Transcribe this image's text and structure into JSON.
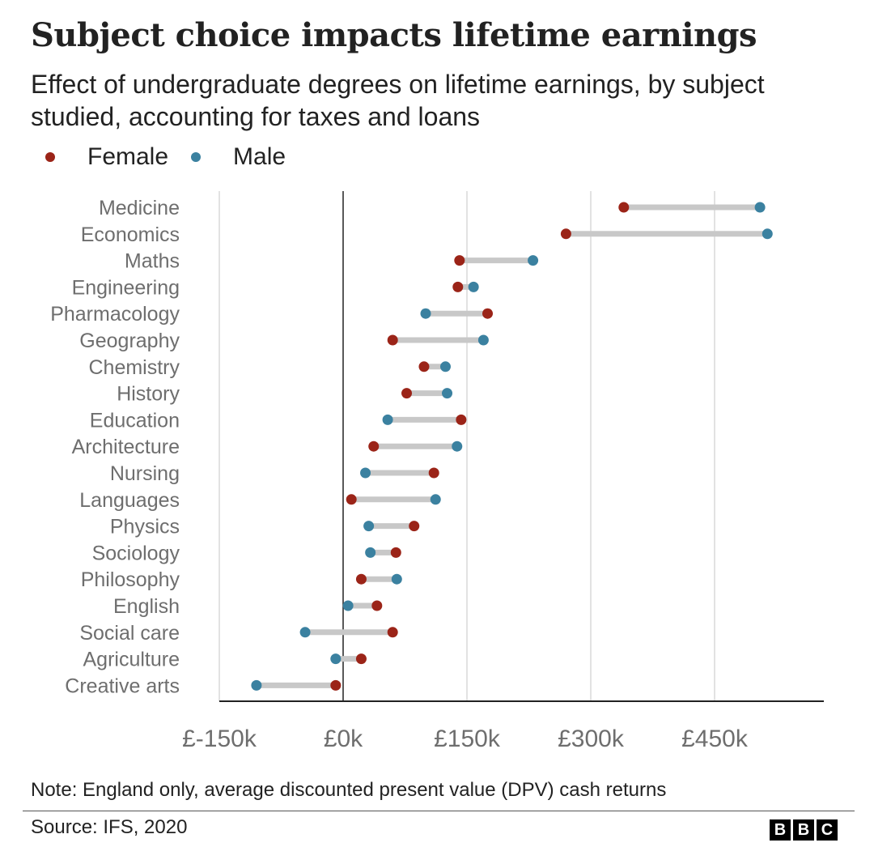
{
  "header": {
    "title": "Subject choice impacts lifetime earnings",
    "subtitle": "Effect of undergraduate degrees on lifetime earnings, by subject studied, accounting for taxes and loans"
  },
  "footer": {
    "note": "Note: England only, average discounted present value (DPV) cash returns",
    "source": "Source: IFS, 2020",
    "logo_letters": [
      "B",
      "B",
      "C"
    ]
  },
  "colors": {
    "female": "#9b2418",
    "male": "#3b81a0",
    "connector": "#c8c8c8",
    "grid": "#cfcfcf",
    "axis": "#222222",
    "label": "#6e6e6e"
  },
  "chart_data": {
    "type": "dumbbell",
    "title": "Subject choice impacts lifetime earnings",
    "xlim": [
      -150,
      580
    ],
    "xticks": [
      -150,
      0,
      150,
      300,
      450
    ],
    "xtick_labels": [
      "£-150k",
      "£0k",
      "£150k",
      "£300k",
      "£450k"
    ],
    "x_unit": "£k",
    "legend": [
      {
        "name": "Female",
        "color": "#9b2418"
      },
      {
        "name": "Male",
        "color": "#3b81a0"
      }
    ],
    "categories": [
      "Medicine",
      "Economics",
      "Maths",
      "Engineering",
      "Pharmacology",
      "Geography",
      "Chemistry",
      "History",
      "Education",
      "Architecture",
      "Nursing",
      "Languages",
      "Physics",
      "Sociology",
      "Philosophy",
      "English",
      "Social care",
      "Agriculture",
      "Creative arts"
    ],
    "series": [
      {
        "name": "Female",
        "values": [
          340,
          270,
          141,
          139,
          175,
          60,
          98,
          77,
          143,
          37,
          110,
          10,
          86,
          64,
          22,
          41,
          60,
          22,
          -9
        ]
      },
      {
        "name": "Male",
        "values": [
          505,
          514,
          230,
          158,
          100,
          170,
          124,
          126,
          54,
          138,
          27,
          112,
          31,
          33,
          65,
          6,
          -46,
          -9,
          -105
        ]
      }
    ]
  }
}
